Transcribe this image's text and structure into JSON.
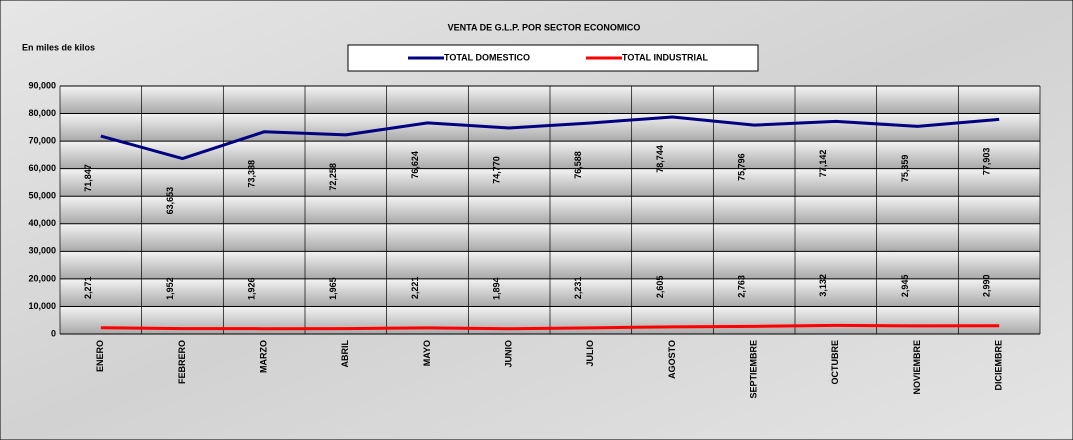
{
  "chart_data": {
    "type": "line",
    "title": "VENTA DE G.L.P. POR SECTOR ECONOMICO",
    "y_label": "En miles de kilos",
    "categories": [
      "ENERO",
      "FEBRERO",
      "MARZO",
      "ABRIL",
      "MAYO",
      "JUNIO",
      "JULIO",
      "AGOSTO",
      "SEPTIEMBRE",
      "OCTUBRE",
      "NOVIEMBRE",
      "DICIEMBRE"
    ],
    "series": [
      {
        "name": "TOTAL DOMESTICO",
        "color": "#000080",
        "values": [
          71847,
          63653,
          73388,
          72258,
          76624,
          74770,
          76588,
          78744,
          75796,
          77142,
          75359,
          77903
        ],
        "value_labels": [
          "71,847",
          "63,653",
          "73,388",
          "72,258",
          "76,624",
          "74,770",
          "76,588",
          "78,744",
          "75,796",
          "77,142",
          "75,359",
          "77,903"
        ]
      },
      {
        "name": "TOTAL INDUSTRIAL",
        "color": "#ff0000",
        "values": [
          2271,
          1952,
          1926,
          1965,
          2221,
          1894,
          2231,
          2605,
          2763,
          3132,
          2945,
          2990
        ],
        "value_labels": [
          "2,271",
          "1,952",
          "1,926",
          "1,965",
          "2,221",
          "1,894",
          "2,231",
          "2,605",
          "2,763",
          "3,132",
          "2,945",
          "2,990"
        ]
      }
    ],
    "ylim": [
      0,
      90000
    ],
    "yticks": [
      0,
      {
        "value": 10000,
        "label": "10,000"
      },
      {
        "value": 20000,
        "label": "20,000"
      },
      {
        "value": 30000,
        "label": "30,000"
      },
      {
        "value": 40000,
        "label": "40,000"
      },
      {
        "value": 50000,
        "label": "50,000"
      },
      {
        "value": 60000,
        "label": "60,000"
      },
      {
        "value": 70000,
        "label": "70,000"
      },
      {
        "value": 80000,
        "label": "80,000"
      },
      {
        "value": 90000,
        "label": "90,000"
      }
    ],
    "grid": true
  }
}
